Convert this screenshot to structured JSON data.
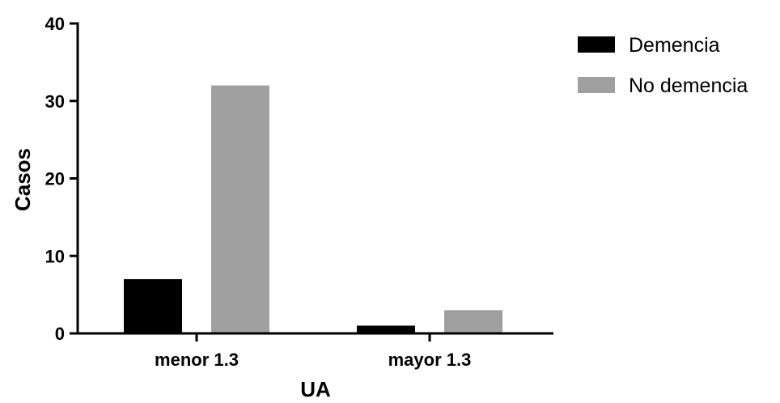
{
  "chart_data": {
    "type": "bar",
    "categories": [
      "menor 1.3",
      "mayor 1.3"
    ],
    "series": [
      {
        "name": "Demencia",
        "values": [
          7,
          1
        ],
        "color": "#000000"
      },
      {
        "name": "No demencia",
        "values": [
          32,
          3
        ],
        "color": "#a0a0a0"
      }
    ],
    "title": "",
    "xlabel": "UA",
    "ylabel": "Casos",
    "ylim": [
      0,
      40
    ],
    "yticks": [
      0,
      10,
      20,
      30,
      40
    ],
    "grid": false,
    "legend_position": "top-right"
  }
}
